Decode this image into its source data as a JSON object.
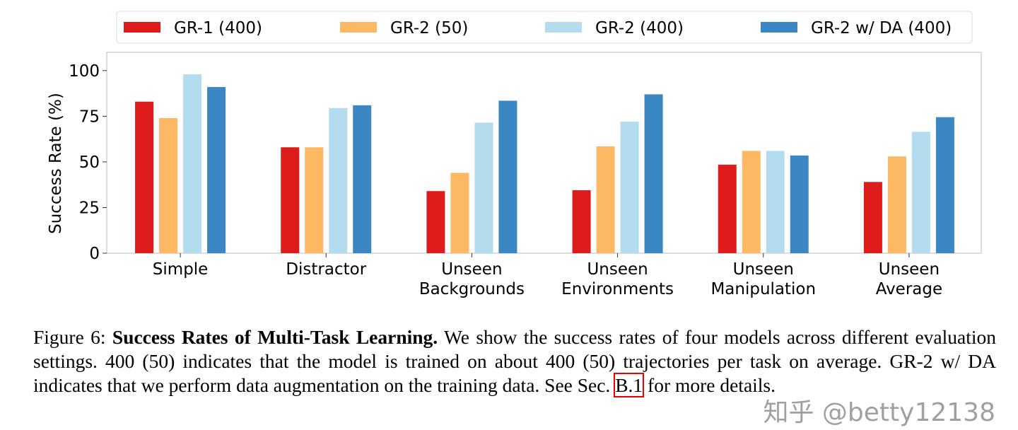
{
  "chart_data": {
    "type": "bar",
    "title": "",
    "xlabel": "",
    "ylabel": "Success Rate (%)",
    "ylim": [
      0,
      110
    ],
    "yticks": [
      0,
      25,
      50,
      75,
      100
    ],
    "grid": false,
    "legend_placement": "top",
    "categories": [
      [
        "Simple"
      ],
      [
        "Distractor"
      ],
      [
        "Unseen",
        "Backgrounds"
      ],
      [
        "Unseen",
        "Environments"
      ],
      [
        "Unseen",
        "Manipulation"
      ],
      [
        "Unseen",
        "Average"
      ]
    ],
    "series": [
      {
        "name": "GR-1 (400)",
        "color": "#de1c1c",
        "values": [
          83,
          58,
          34,
          34.5,
          48.5,
          39
        ]
      },
      {
        "name": "GR-2 (50)",
        "color": "#fdb863",
        "values": [
          74,
          58,
          44,
          58.5,
          56,
          53
        ]
      },
      {
        "name": "GR-2 (400)",
        "color": "#b3ddee",
        "values": [
          98,
          79.5,
          71.5,
          72,
          56,
          66.5
        ]
      },
      {
        "name": "GR-2 w/ DA (400)",
        "color": "#3a87c3",
        "values": [
          91,
          81,
          83.5,
          87,
          53.5,
          74.5
        ]
      }
    ]
  },
  "caption": {
    "label": "Figure 6:",
    "bold": "Success Rates of Multi-Task Learning.",
    "text1": "We show the success rates of four models across different evaluation settings. 400 (50) indicates that the model is trained on about 400 (50) trajectories per task on average. GR-2 w/ DA indicates that we perform data augmentation on the training data. See Sec.",
    "ref": "B.1",
    "text2": "for more details."
  },
  "watermark": "知乎 @betty12138"
}
